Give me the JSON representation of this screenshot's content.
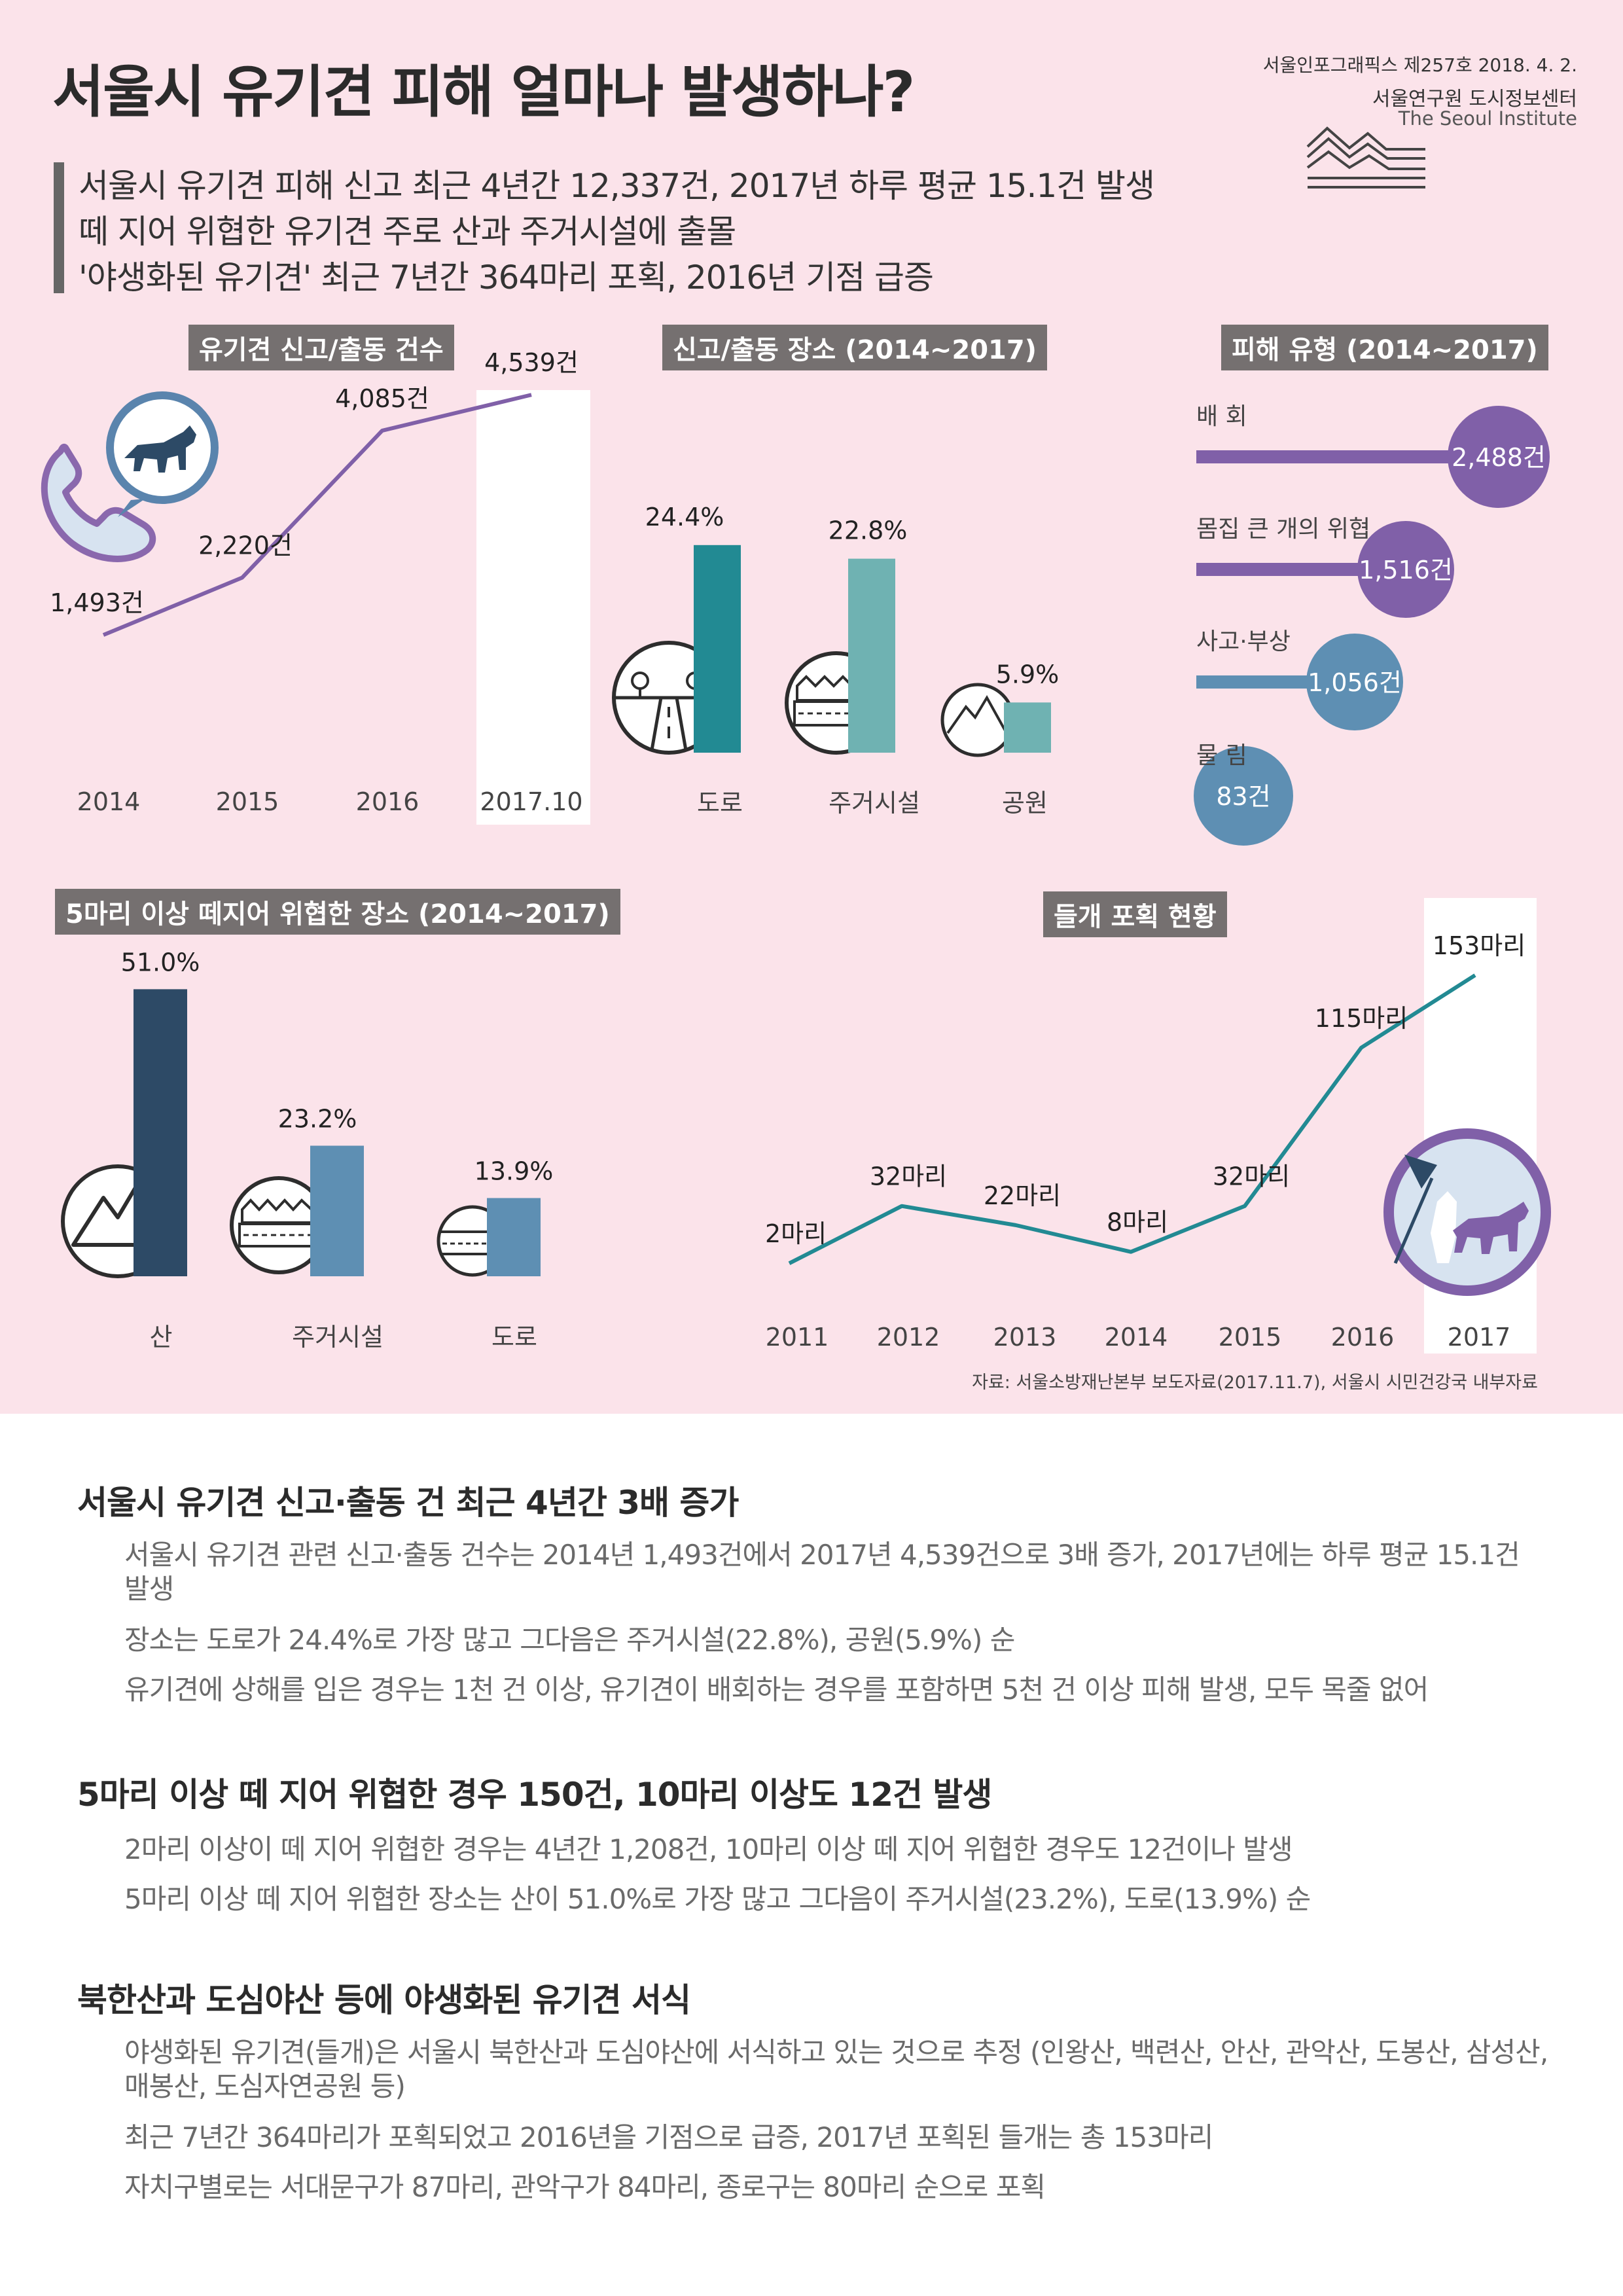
{
  "header": {
    "title": "서울시 유기견 피해 얼마나 발생하나?",
    "series_no": "서울인포그래픽스 제257호 2018. 4. 2.",
    "org_kr": "서울연구원 도시정보센터",
    "org_en": "The Seoul Institute"
  },
  "lead": [
    "서울시 유기견 피해 신고 최근 4년간 12,337건, 2017년 하루 평균 15.1건 발생",
    "떼 지어 위협한 유기견 주로 산과 주거시설에 출몰",
    "'야생화된 유기견' 최근 7년간 364마리 포획, 2016년 기점 급증"
  ],
  "colors": {
    "background": "#fbe3ea",
    "label_box": "#757070",
    "purple": "#8060a8",
    "teal": "#228a93",
    "teal_light": "#6fb2b2",
    "navy": "#2d4a66",
    "steel": "#5e8fb3",
    "highlight": "#ffffff"
  },
  "icons": [
    "phone-icon",
    "wolf-icon",
    "road-icon",
    "houses-icon",
    "mountain-icon",
    "person-dog-icon",
    "institute-logo-icon"
  ],
  "chart_data": [
    {
      "id": "reports",
      "type": "line",
      "title": "유기견 신고/출동 건수",
      "categories": [
        "2014",
        "2015",
        "2016",
        "2017.10"
      ],
      "values": [
        1493,
        2220,
        4085,
        4539
      ],
      "labels": [
        "1,493건",
        "2,220건",
        "4,085건",
        "4,539건"
      ],
      "highlight": "2017.10"
    },
    {
      "id": "places",
      "type": "bar",
      "title": "신고/출동 장소 (2014~2017)",
      "categories": [
        "도로",
        "주거시설",
        "공원"
      ],
      "values": [
        24.4,
        22.8,
        5.9
      ],
      "labels": [
        "24.4%",
        "22.8%",
        "5.9%"
      ]
    },
    {
      "id": "damage",
      "type": "bar",
      "orientation": "horizontal",
      "title": "피해 유형 (2014~2017)",
      "categories": [
        "배 회",
        "몸집 큰 개의 위협",
        "사고·부상",
        "물 림"
      ],
      "values": [
        2488,
        1516,
        1056,
        83
      ],
      "labels": [
        "2,488건",
        "1,516건",
        "1,056건",
        "83건"
      ]
    },
    {
      "id": "pack",
      "type": "bar",
      "title": "5마리 이상 떼지어 위협한 장소 (2014~2017)",
      "categories": [
        "산",
        "주거시설",
        "도로"
      ],
      "values": [
        51.0,
        23.2,
        13.9
      ],
      "labels": [
        "51.0%",
        "23.2%",
        "13.9%"
      ]
    },
    {
      "id": "capture",
      "type": "line",
      "title": "들개 포획 현황",
      "categories": [
        "2011",
        "2012",
        "2013",
        "2014",
        "2015",
        "2016",
        "2017"
      ],
      "values": [
        2,
        32,
        22,
        8,
        32,
        115,
        153
      ],
      "labels": [
        "2마리",
        "32마리",
        "22마리",
        "8마리",
        "32마리",
        "115마리",
        "153마리"
      ],
      "highlight": "2017"
    }
  ],
  "source": "자료: 서울소방재난본부 보도자료(2017.11.7), 서울시 시민건강국 내부자료",
  "sections": [
    {
      "heading": "서울시 유기견 신고·출동 건 최근 4년간 3배 증가",
      "paragraphs": [
        "서울시 유기견 관련 신고·출동 건수는 2014년 1,493건에서 2017년 4,539건으로 3배 증가, 2017년에는 하루 평균 15.1건 발생",
        "장소는 도로가 24.4%로 가장 많고 그다음은 주거시설(22.8%), 공원(5.9%) 순",
        "유기견에 상해를 입은 경우는 1천 건 이상, 유기견이 배회하는 경우를 포함하면 5천 건 이상 피해 발생, 모두 목줄 없어"
      ]
    },
    {
      "heading": "5마리 이상 떼 지어 위협한 경우 150건, 10마리 이상도 12건 발생",
      "paragraphs": [
        "2마리 이상이 떼 지어 위협한 경우는 4년간 1,208건, 10마리 이상 떼 지어 위협한 경우도 12건이나 발생",
        "5마리 이상 떼 지어 위협한 장소는 산이 51.0%로 가장 많고 그다음이 주거시설(23.2%), 도로(13.9%) 순"
      ]
    },
    {
      "heading": "북한산과 도심야산 등에 야생화된 유기견 서식",
      "paragraphs": [
        "야생화된 유기견(들개)은 서울시 북한산과 도심야산에 서식하고 있는 것으로 추정 (인왕산, 백련산, 안산, 관악산, 도봉산, 삼성산, 매봉산, 도심자연공원 등)",
        "최근 7년간 364마리가 포획되었고 2016년을 기점으로 급증, 2017년 포획된 들개는 총 153마리",
        "자치구별로는 서대문구가 87마리, 관악구가 84마리, 종로구는 80마리 순으로 포획"
      ]
    }
  ]
}
